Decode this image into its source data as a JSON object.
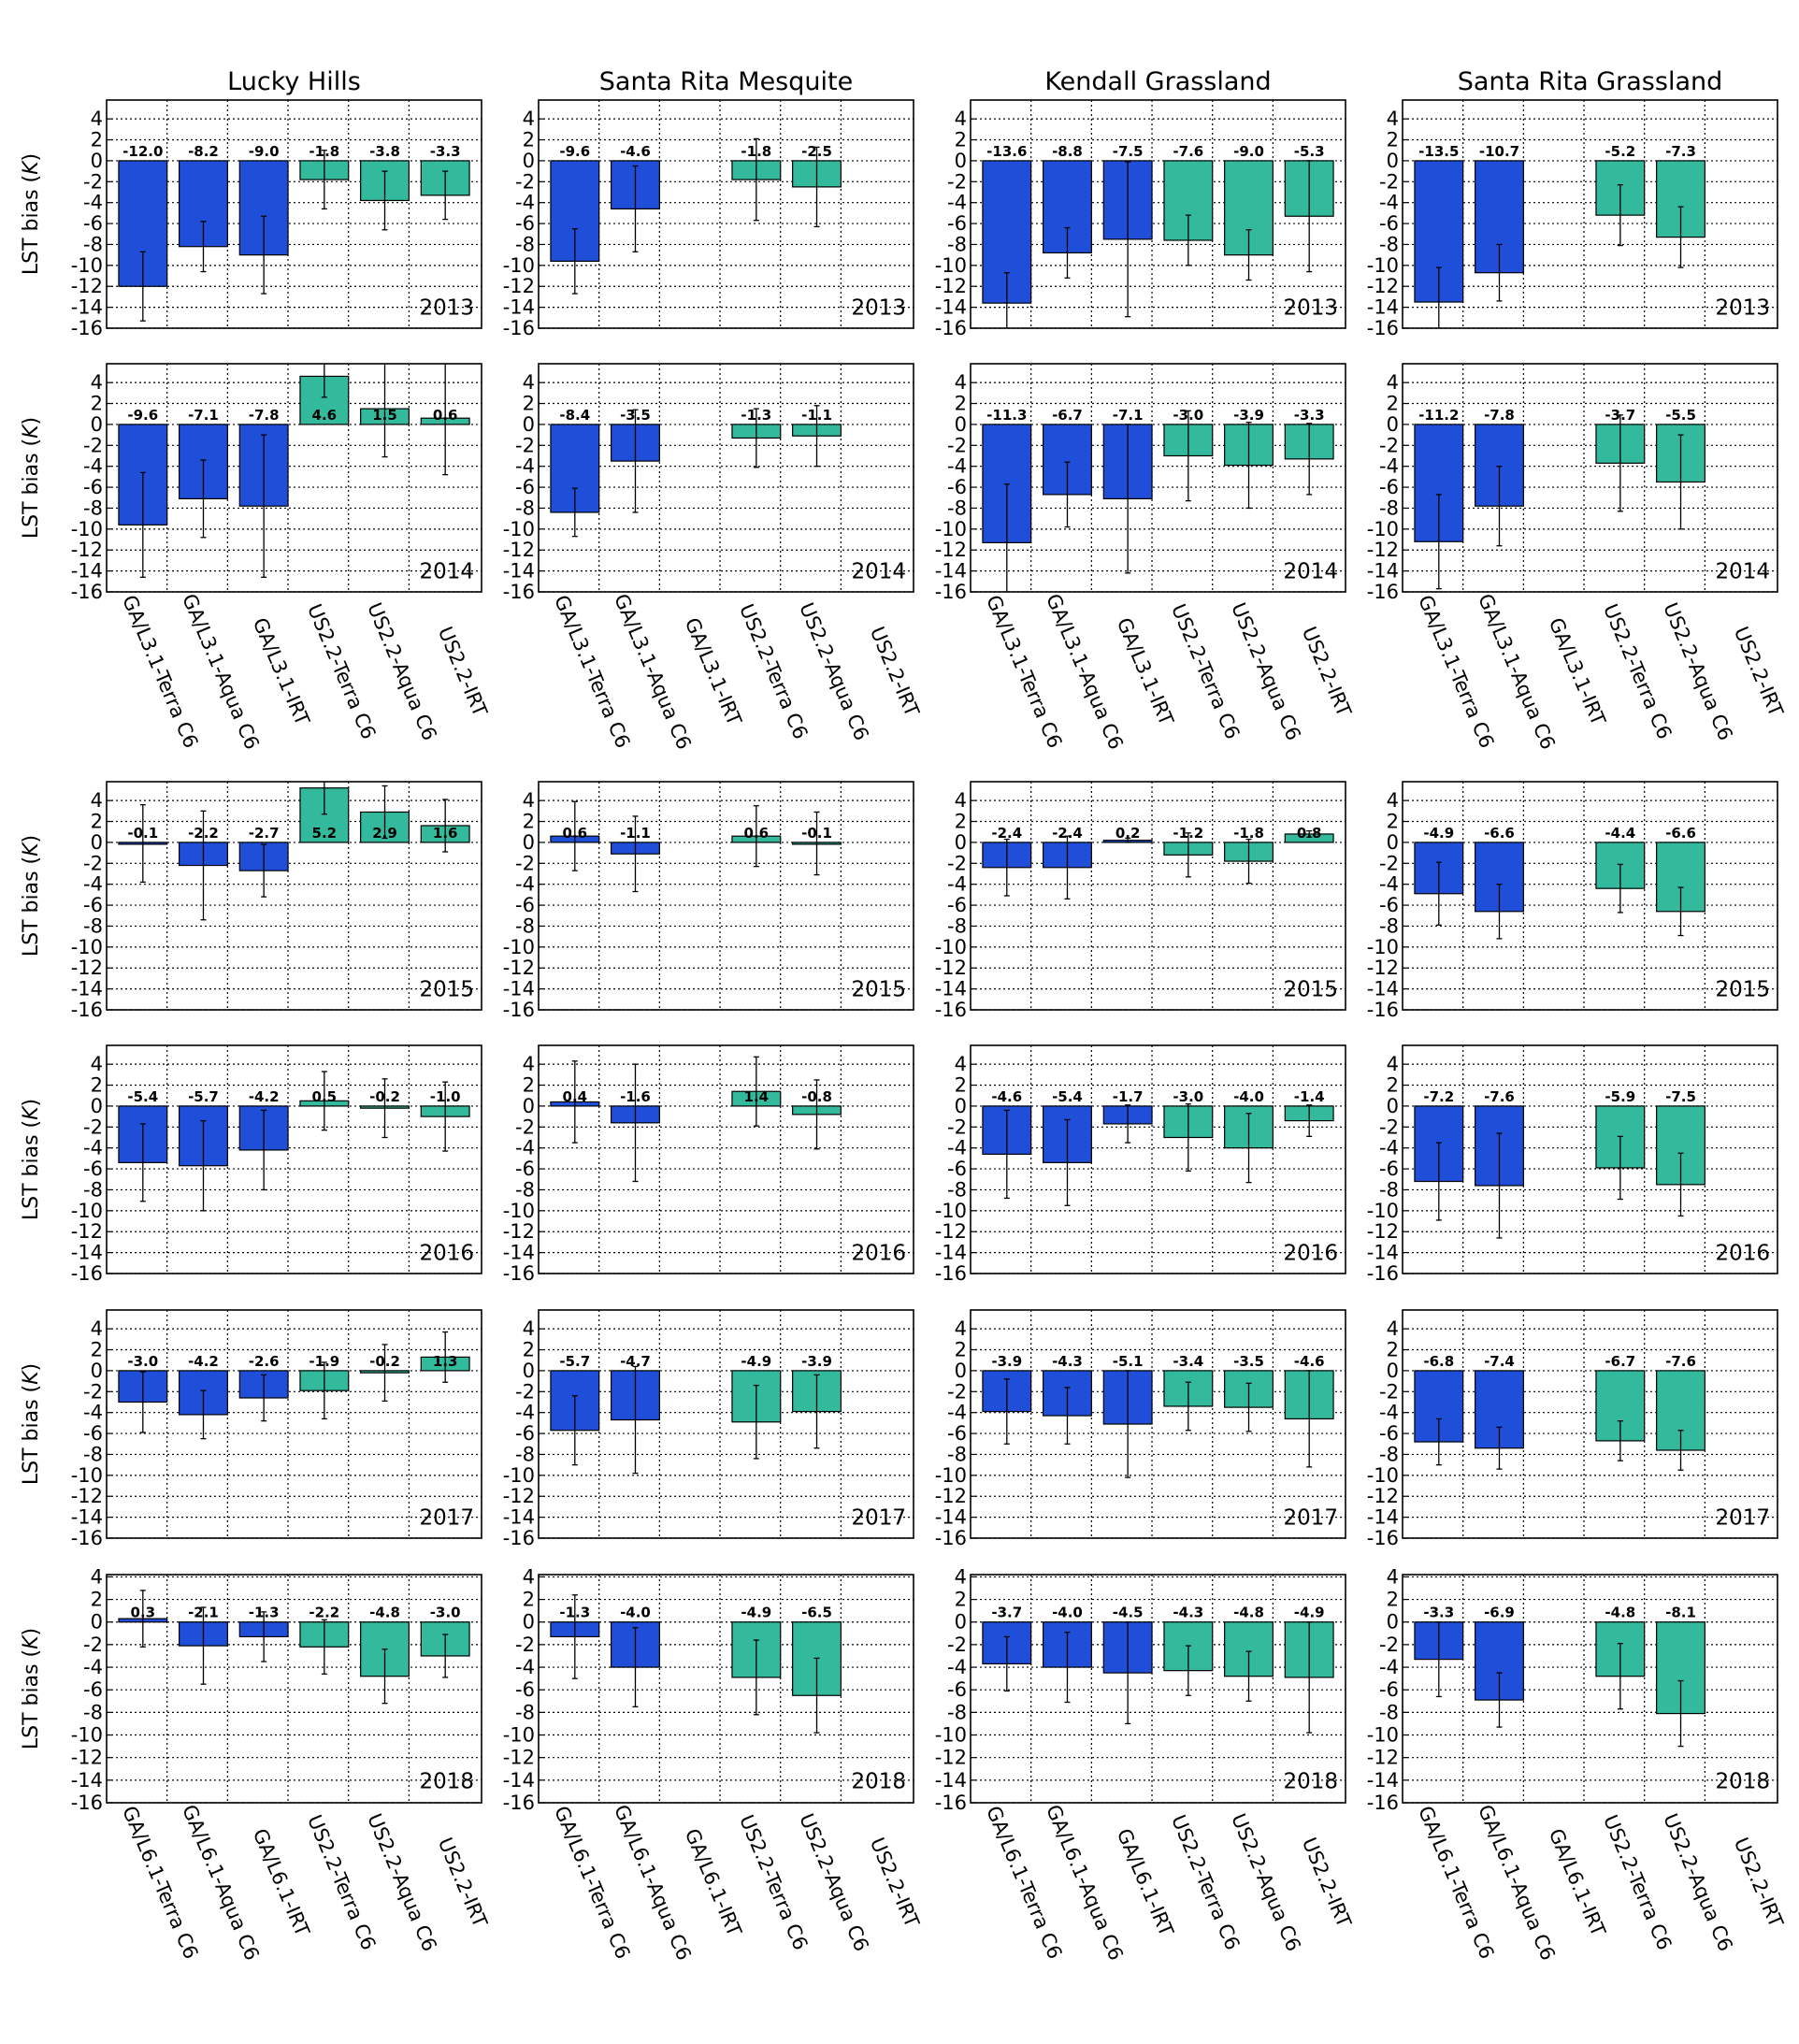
{
  "chart_data": {
    "type": "bar",
    "sites": [
      "Lucky Hills",
      "Santa Rita Mesquite",
      "Kendall Grassland",
      "Santa Rita Grassland"
    ],
    "years": [
      "2013",
      "2014",
      "2015",
      "2016",
      "2017",
      "2018"
    ],
    "ylabel_text": "LST bias (",
    "ylabel_unit": "K",
    "ylabel_close": ")",
    "ylim": [
      -16,
      5.8
    ],
    "ylim_2018": [
      -16,
      4.2
    ],
    "yticks": [
      4,
      2,
      0,
      -2,
      -4,
      -6,
      -8,
      -10,
      -12,
      -14,
      -16
    ],
    "categories_2013_2017": [
      "GA/L3.1-Terra C6",
      "GA/L3.1-Aqua C6",
      "GA/L3.1-IRT",
      "US2.2-Terra C6",
      "US2.2-Aqua C6",
      "US2.2-IRT"
    ],
    "categories_2018": [
      "GA/L6.1-Terra C6",
      "GA/L6.1-Aqua C6",
      "GA/L6.1-IRT",
      "US2.2-Terra C6",
      "US2.2-Aqua C6",
      "US2.2-IRT"
    ],
    "series_colors": [
      "#1f4fd9",
      "#1f4fd9",
      "#1f4fd9",
      "#33b99b",
      "#33b99b",
      "#33b99b"
    ],
    "grid": true,
    "panels": [
      {
        "site": "Lucky Hills",
        "year": "2013",
        "values": [
          -12.0,
          -8.2,
          -9.0,
          -1.8,
          -3.8,
          -3.3
        ],
        "errors": [
          3.3,
          2.4,
          3.7,
          2.8,
          2.8,
          2.3
        ]
      },
      {
        "site": "Santa Rita Mesquite",
        "year": "2013",
        "values": [
          -9.6,
          -4.6,
          null,
          -1.8,
          -2.5,
          null
        ],
        "errors": [
          3.1,
          4.1,
          null,
          3.9,
          3.8,
          null
        ]
      },
      {
        "site": "Kendall Grassland",
        "year": "2013",
        "values": [
          -13.6,
          -8.8,
          -7.5,
          -7.6,
          -9.0,
          -5.3
        ],
        "errors": [
          2.9,
          2.4,
          7.4,
          2.4,
          2.4,
          5.3
        ]
      },
      {
        "site": "Santa Rita Grassland",
        "year": "2013",
        "values": [
          -13.5,
          -10.7,
          null,
          -5.2,
          -7.3,
          null
        ],
        "errors": [
          3.3,
          2.7,
          null,
          2.9,
          2.9,
          null
        ]
      },
      {
        "site": "Lucky Hills",
        "year": "2014",
        "values": [
          -9.6,
          -7.1,
          -7.8,
          4.6,
          1.5,
          0.6
        ],
        "errors": [
          5.0,
          3.7,
          6.8,
          2.0,
          4.6,
          5.4
        ]
      },
      {
        "site": "Santa Rita Mesquite",
        "year": "2014",
        "values": [
          -8.4,
          -3.5,
          null,
          -1.3,
          -1.1,
          null
        ],
        "errors": [
          2.3,
          4.9,
          null,
          2.8,
          2.9,
          null
        ]
      },
      {
        "site": "Kendall Grassland",
        "year": "2014",
        "values": [
          -11.3,
          -6.7,
          -7.1,
          -3.0,
          -3.9,
          -3.3
        ],
        "errors": [
          5.6,
          3.1,
          7.1,
          4.3,
          4.1,
          3.4
        ]
      },
      {
        "site": "Santa Rita Grassland",
        "year": "2014",
        "values": [
          -11.2,
          -7.8,
          null,
          -3.7,
          -5.5,
          null
        ],
        "errors": [
          4.5,
          3.8,
          null,
          4.6,
          4.5,
          null
        ]
      },
      {
        "site": "Lucky Hills",
        "year": "2015",
        "values": [
          -0.1,
          -2.2,
          -2.7,
          5.2,
          2.9,
          1.6
        ],
        "errors": [
          3.7,
          5.2,
          2.5,
          2.5,
          2.5,
          2.5
        ]
      },
      {
        "site": "Santa Rita Mesquite",
        "year": "2015",
        "values": [
          0.6,
          -1.1,
          null,
          0.6,
          -0.1,
          null
        ],
        "errors": [
          3.3,
          3.6,
          null,
          2.9,
          3.0,
          null
        ]
      },
      {
        "site": "Kendall Grassland",
        "year": "2015",
        "values": [
          -2.4,
          -2.4,
          0.2,
          -1.2,
          -1.8,
          0.8
        ],
        "errors": [
          2.7,
          3.0,
          0.2,
          2.1,
          2.1,
          0.3
        ]
      },
      {
        "site": "Santa Rita Grassland",
        "year": "2015",
        "values": [
          -4.9,
          -6.6,
          null,
          -4.4,
          -6.6,
          null
        ],
        "errors": [
          3.0,
          2.6,
          null,
          2.3,
          2.3,
          null
        ]
      },
      {
        "site": "Lucky Hills",
        "year": "2016",
        "values": [
          -5.4,
          -5.7,
          -4.2,
          0.5,
          -0.2,
          -1.0
        ],
        "errors": [
          3.7,
          4.3,
          3.8,
          2.8,
          2.8,
          3.3
        ]
      },
      {
        "site": "Santa Rita Mesquite",
        "year": "2016",
        "values": [
          0.4,
          -1.6,
          null,
          1.4,
          -0.8,
          null
        ],
        "errors": [
          3.9,
          5.6,
          null,
          3.3,
          3.3,
          null
        ]
      },
      {
        "site": "Kendall Grassland",
        "year": "2016",
        "values": [
          -4.6,
          -5.4,
          -1.7,
          -3.0,
          -4.0,
          -1.4
        ],
        "errors": [
          4.2,
          4.1,
          1.8,
          3.2,
          3.3,
          1.5
        ]
      },
      {
        "site": "Santa Rita Grassland",
        "year": "2016",
        "values": [
          -7.2,
          -7.6,
          null,
          -5.9,
          -7.5,
          null
        ],
        "errors": [
          3.7,
          5.0,
          null,
          3.0,
          3.0,
          null
        ]
      },
      {
        "site": "Lucky Hills",
        "year": "2017",
        "values": [
          -3.0,
          -4.2,
          -2.6,
          -1.9,
          -0.2,
          1.3
        ],
        "errors": [
          2.9,
          2.3,
          2.2,
          2.7,
          2.7,
          2.4
        ]
      },
      {
        "site": "Santa Rita Mesquite",
        "year": "2017",
        "values": [
          -5.7,
          -4.7,
          null,
          -4.9,
          -3.9,
          null
        ],
        "errors": [
          3.3,
          5.1,
          null,
          3.5,
          3.5,
          null
        ]
      },
      {
        "site": "Kendall Grassland",
        "year": "2017",
        "values": [
          -3.9,
          -4.3,
          -5.1,
          -3.4,
          -3.5,
          -4.6
        ],
        "errors": [
          3.1,
          2.7,
          5.1,
          2.3,
          2.3,
          4.6
        ]
      },
      {
        "site": "Santa Rita Grassland",
        "year": "2017",
        "values": [
          -6.8,
          -7.4,
          null,
          -6.7,
          -7.6,
          null
        ],
        "errors": [
          2.2,
          2.0,
          null,
          1.9,
          1.9,
          null
        ]
      },
      {
        "site": "Lucky Hills",
        "year": "2018",
        "values": [
          0.3,
          -2.1,
          -1.3,
          -2.2,
          -4.8,
          -3.0
        ],
        "errors": [
          2.5,
          3.4,
          2.2,
          2.4,
          2.4,
          1.9
        ]
      },
      {
        "site": "Santa Rita Mesquite",
        "year": "2018",
        "values": [
          -1.3,
          -4.0,
          null,
          -4.9,
          -6.5,
          null
        ],
        "errors": [
          3.7,
          3.5,
          null,
          3.3,
          3.3,
          null
        ]
      },
      {
        "site": "Kendall Grassland",
        "year": "2018",
        "values": [
          -3.7,
          -4.0,
          -4.5,
          -4.3,
          -4.8,
          -4.9
        ],
        "errors": [
          2.4,
          3.1,
          4.5,
          2.2,
          2.2,
          4.9
        ]
      },
      {
        "site": "Santa Rita Grassland",
        "year": "2018",
        "values": [
          -3.3,
          -6.9,
          null,
          -4.8,
          -8.1,
          null
        ],
        "errors": [
          3.3,
          2.4,
          null,
          2.9,
          2.9,
          null
        ]
      }
    ]
  }
}
